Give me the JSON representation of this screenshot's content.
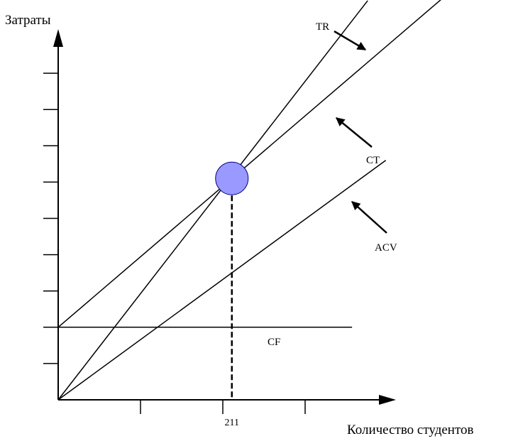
{
  "chart_data": {
    "type": "line",
    "title": "",
    "ylabel": "Затраты",
    "xlabel": "Количество студентов",
    "xlim": [
      0,
      400
    ],
    "ylim": [
      0,
      10
    ],
    "x_ticks": [
      100,
      200,
      300
    ],
    "x_tick_labels": [
      {
        "x": 211,
        "label": "211"
      }
    ],
    "y_ticks": [
      1,
      2,
      3,
      4,
      5,
      6,
      7,
      8,
      9
    ],
    "grid": false,
    "series": [
      {
        "name": "TR",
        "x": [
          0,
          376
        ],
        "y": [
          0,
          11
        ]
      },
      {
        "name": "CT",
        "x": [
          0,
          479
        ],
        "y": [
          2,
          11.3
        ]
      },
      {
        "name": "ACV",
        "x": [
          0,
          398
        ],
        "y": [
          0,
          6.6
        ]
      },
      {
        "name": "CF",
        "x": [
          0,
          357
        ],
        "y": [
          2,
          2
        ]
      }
    ],
    "break_even_point": {
      "x": 211,
      "y": 6.1
    },
    "annotations": [
      {
        "text": "TR",
        "series": "TR"
      },
      {
        "text": "CT",
        "series": "CT"
      },
      {
        "text": "ACV",
        "series": "ACV"
      },
      {
        "text": "CF",
        "series": "CF"
      }
    ],
    "colors": {
      "axis": "#000000",
      "line": "#000000",
      "marker_fill": "#9999ff",
      "marker_stroke": "#000080"
    }
  }
}
